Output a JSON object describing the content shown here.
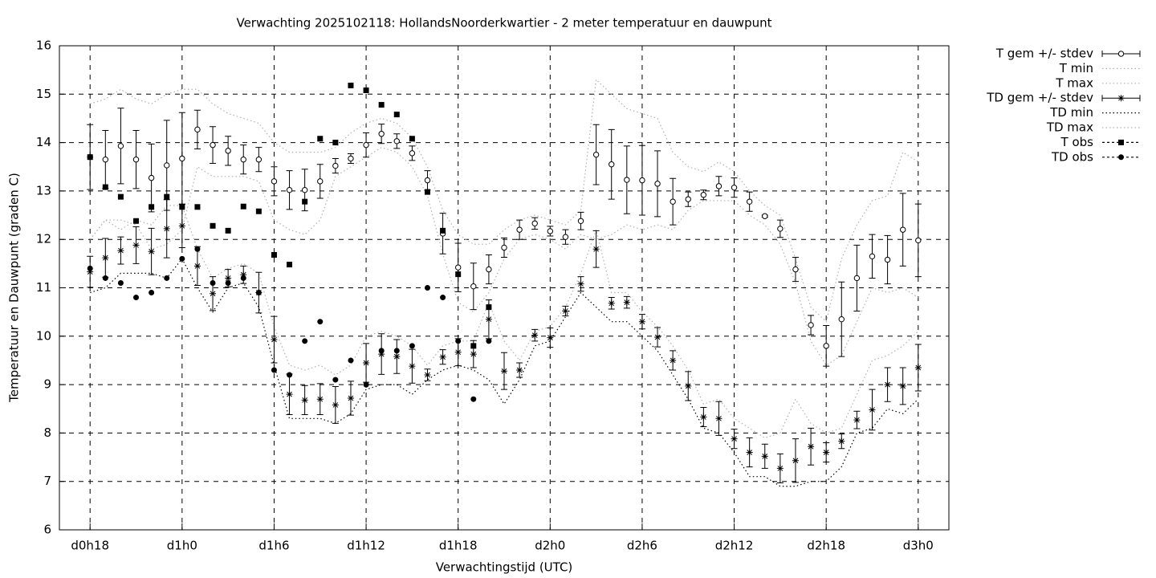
{
  "chart_data": {
    "type": "errorbar",
    "title": "Verwachting 2025102118: HollandsNoorderkwartier - 2 meter temperatuur en dauwpunt",
    "xlabel": "Verwachtingstijd (UTC)",
    "ylabel": "Temperatuur en Dauwpunt (graden C)",
    "xlim": [
      -2,
      56
    ],
    "ylim": [
      6,
      16
    ],
    "xticks": [
      {
        "value": 0,
        "label": "d0h18"
      },
      {
        "value": 6,
        "label": "d1h0"
      },
      {
        "value": 12,
        "label": "d1h6"
      },
      {
        "value": 18,
        "label": "d1h12"
      },
      {
        "value": 24,
        "label": "d1h18"
      },
      {
        "value": 30,
        "label": "d2h0"
      },
      {
        "value": 36,
        "label": "d2h6"
      },
      {
        "value": 42,
        "label": "d2h12"
      },
      {
        "value": 48,
        "label": "d2h18"
      },
      {
        "value": 54,
        "label": "d3h0"
      }
    ],
    "yticks": [
      6,
      7,
      8,
      9,
      10,
      11,
      12,
      13,
      14,
      15,
      16
    ],
    "grid": true,
    "legend": "outside-right-top",
    "x": [
      0,
      1,
      2,
      3,
      4,
      5,
      6,
      7,
      8,
      9,
      10,
      11,
      12,
      13,
      14,
      15,
      16,
      17,
      18,
      19,
      20,
      21,
      22,
      23,
      24,
      25,
      26,
      27,
      28,
      29,
      30,
      31,
      32,
      33,
      34,
      35,
      36,
      37,
      38,
      39,
      40,
      41,
      42,
      43,
      44,
      45,
      46,
      47,
      48,
      49,
      50,
      51,
      52,
      53,
      54
    ],
    "series": [
      {
        "name": "T gem +/- stdev",
        "color": "#000000",
        "kind": "errorbar",
        "marker": "open-circle",
        "values": [
          13.7,
          13.65,
          13.93,
          13.65,
          13.27,
          13.53,
          13.67,
          14.27,
          13.95,
          13.83,
          13.65,
          13.65,
          13.2,
          13.02,
          13.02,
          13.2,
          13.52,
          13.67,
          13.95,
          14.18,
          14.03,
          13.78,
          13.22,
          12.12,
          11.42,
          11.03,
          11.38,
          11.83,
          12.2,
          12.33,
          12.17,
          12.05,
          12.38,
          13.75,
          13.55,
          13.23,
          13.22,
          13.15,
          12.78,
          12.83,
          12.92,
          13.1,
          13.07,
          12.78,
          12.48,
          12.22,
          11.38,
          10.23,
          9.8,
          10.35,
          11.2,
          11.65,
          11.58,
          12.2,
          11.98
        ],
        "errors": [
          0.67,
          0.6,
          0.78,
          0.6,
          0.7,
          0.93,
          0.95,
          0.4,
          0.38,
          0.3,
          0.3,
          0.25,
          0.3,
          0.4,
          0.43,
          0.35,
          0.15,
          0.1,
          0.25,
          0.2,
          0.15,
          0.15,
          0.2,
          0.42,
          0.5,
          0.48,
          0.3,
          0.2,
          0.2,
          0.12,
          0.1,
          0.15,
          0.18,
          0.62,
          0.72,
          0.7,
          0.72,
          0.68,
          0.48,
          0.15,
          0.1,
          0.2,
          0.2,
          0.2,
          0.02,
          0.18,
          0.25,
          0.2,
          0.42,
          0.77,
          0.68,
          0.45,
          0.5,
          0.75,
          0.75
        ]
      },
      {
        "name": "T min",
        "color": "#b0b0b0",
        "kind": "line",
        "values": [
          12.0,
          12.4,
          12.4,
          12.3,
          11.8,
          11.9,
          12.2,
          13.5,
          13.3,
          13.3,
          13.3,
          13.2,
          12.4,
          12.2,
          12.1,
          12.4,
          13.3,
          13.5,
          13.7,
          13.9,
          13.8,
          13.5,
          12.9,
          11.7,
          10.7,
          10.5,
          10.9,
          11.6,
          12.0,
          12.1,
          12.0,
          11.8,
          12.1,
          12.0,
          12.1,
          12.3,
          12.2,
          12.3,
          12.2,
          12.6,
          12.8,
          12.8,
          12.8,
          12.5,
          12.3,
          11.9,
          11.1,
          9.9,
          9.4,
          9.6,
          10.3,
          11.0,
          10.9,
          11.0,
          10.8
        ]
      },
      {
        "name": "T max",
        "color": "#b0b0b0",
        "kind": "line",
        "values": [
          14.8,
          14.9,
          15.1,
          14.9,
          14.8,
          15.0,
          15.1,
          15.1,
          14.8,
          14.6,
          14.5,
          14.4,
          14.0,
          13.8,
          13.8,
          13.8,
          13.9,
          14.2,
          14.4,
          14.5,
          14.4,
          14.1,
          13.5,
          12.6,
          12.1,
          11.9,
          11.9,
          12.2,
          12.4,
          12.5,
          12.4,
          12.3,
          12.6,
          15.3,
          15.0,
          14.7,
          14.6,
          14.5,
          13.8,
          13.5,
          13.4,
          13.6,
          13.4,
          13.0,
          12.7,
          12.5,
          11.6,
          10.6,
          10.3,
          11.6,
          12.3,
          12.8,
          12.9,
          13.8,
          13.6
        ]
      },
      {
        "name": "TD gem +/- stdev",
        "color": "#000000",
        "kind": "errorbar",
        "marker": "star",
        "values": [
          11.33,
          11.62,
          11.77,
          11.88,
          11.75,
          12.22,
          12.28,
          11.45,
          10.88,
          11.2,
          11.27,
          10.9,
          9.93,
          8.8,
          8.68,
          8.7,
          8.58,
          8.72,
          9.45,
          9.63,
          9.58,
          9.38,
          9.2,
          9.57,
          9.67,
          9.63,
          10.35,
          9.28,
          9.3,
          10.02,
          9.97,
          10.52,
          11.08,
          11.8,
          10.68,
          10.7,
          10.3,
          9.98,
          9.5,
          8.97,
          8.33,
          8.3,
          7.88,
          7.6,
          7.52,
          7.27,
          7.43,
          7.72,
          7.6,
          7.83,
          8.27,
          8.48,
          9.0,
          8.97,
          9.35
        ],
        "errors": [
          0.32,
          0.4,
          0.28,
          0.38,
          0.48,
          0.6,
          0.45,
          0.4,
          0.35,
          0.18,
          0.18,
          0.42,
          0.48,
          0.42,
          0.3,
          0.32,
          0.38,
          0.35,
          0.4,
          0.42,
          0.35,
          0.35,
          0.12,
          0.15,
          0.28,
          0.28,
          0.4,
          0.38,
          0.15,
          0.12,
          0.2,
          0.1,
          0.15,
          0.38,
          0.12,
          0.12,
          0.15,
          0.2,
          0.2,
          0.3,
          0.2,
          0.35,
          0.2,
          0.3,
          0.25,
          0.3,
          0.45,
          0.38,
          0.2,
          0.15,
          0.18,
          0.42,
          0.35,
          0.38,
          0.48
        ]
      },
      {
        "name": "TD min",
        "color": "#000000",
        "kind": "line",
        "values": [
          10.9,
          11.0,
          11.3,
          11.3,
          11.3,
          11.2,
          11.6,
          11.0,
          10.5,
          11.0,
          11.1,
          10.6,
          9.4,
          8.3,
          8.3,
          8.3,
          8.2,
          8.4,
          8.9,
          9.0,
          9.0,
          8.8,
          9.1,
          9.3,
          9.4,
          9.3,
          9.1,
          8.6,
          9.1,
          9.8,
          9.9,
          10.4,
          10.9,
          10.6,
          10.3,
          10.3,
          10.0,
          9.7,
          9.2,
          8.7,
          8.1,
          8.0,
          7.6,
          7.1,
          7.1,
          6.9,
          6.9,
          7.0,
          7.0,
          7.3,
          8.0,
          8.1,
          8.5,
          8.4,
          8.7
        ]
      },
      {
        "name": "TD max",
        "color": "#b0b0b0",
        "kind": "line",
        "values": [
          12.0,
          12.4,
          12.2,
          12.4,
          12.3,
          12.7,
          12.7,
          11.8,
          11.2,
          11.4,
          11.5,
          11.3,
          10.2,
          9.4,
          9.3,
          9.4,
          9.2,
          9.4,
          10.0,
          10.1,
          10.0,
          9.8,
          9.4,
          9.8,
          9.9,
          9.9,
          10.7,
          9.9,
          9.5,
          10.1,
          10.2,
          10.6,
          11.3,
          12.2,
          10.9,
          10.9,
          10.5,
          10.2,
          9.8,
          9.3,
          8.6,
          8.7,
          8.3,
          8.1,
          7.9,
          8.0,
          8.7,
          8.2,
          8.0,
          8.1,
          8.8,
          9.5,
          9.6,
          9.8,
          10.1
        ]
      },
      {
        "name": "T obs",
        "color": "#000000",
        "kind": "points",
        "marker": "square",
        "values": [
          13.7,
          13.08,
          12.88,
          12.38,
          12.67,
          12.88,
          12.67,
          12.67,
          12.28,
          12.18,
          12.68,
          12.58,
          11.68,
          11.48,
          12.78,
          14.08,
          14.0,
          15.18,
          15.08,
          14.78,
          14.58,
          14.08,
          12.98,
          12.18,
          11.28,
          9.8,
          10.6,
          null,
          null,
          null,
          null,
          null,
          null,
          null,
          null,
          null,
          null,
          null,
          null,
          null,
          null,
          null,
          null,
          null,
          null,
          null,
          null,
          null,
          null,
          null,
          null,
          null,
          null,
          null,
          null
        ]
      },
      {
        "name": "TD obs",
        "color": "#000000",
        "kind": "points",
        "marker": "dot",
        "values": [
          11.4,
          11.2,
          11.1,
          10.8,
          10.9,
          11.2,
          11.6,
          11.8,
          11.1,
          11.1,
          11.2,
          10.9,
          9.3,
          9.2,
          9.9,
          10.3,
          9.1,
          9.5,
          9.0,
          9.7,
          9.7,
          9.8,
          11.0,
          10.8,
          9.9,
          8.7,
          9.9,
          null,
          null,
          null,
          null,
          null,
          null,
          null,
          null,
          null,
          null,
          null,
          null,
          null,
          null,
          null,
          null,
          null,
          null,
          null,
          null,
          null,
          null,
          null,
          null,
          null,
          null,
          null,
          null
        ]
      }
    ]
  }
}
